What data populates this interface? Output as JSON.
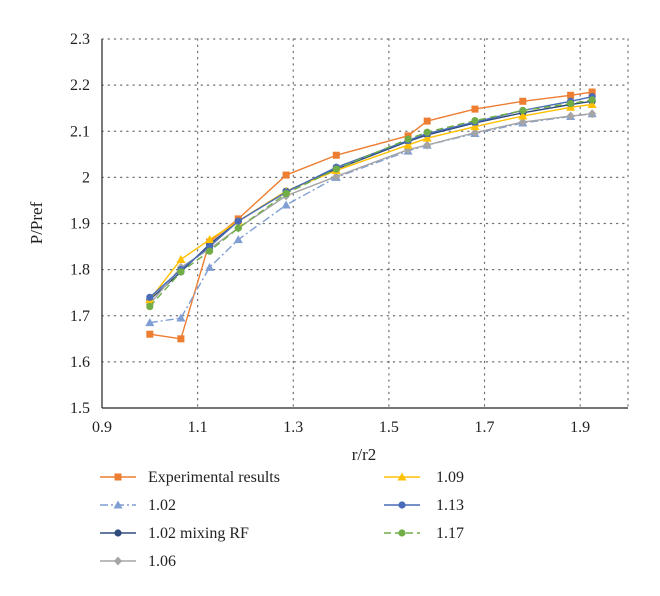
{
  "chart_data": {
    "type": "line",
    "title": "",
    "xlabel": "r/r2",
    "ylabel": "P/Pref",
    "xlim": [
      0.9,
      2.0
    ],
    "ylim": [
      1.5,
      2.3
    ],
    "x_ticks": [
      "0.9",
      "1.1",
      "1.3",
      "1.5",
      "1.7",
      "1.9"
    ],
    "x_tick_values": [
      0.9,
      1.1,
      1.3,
      1.5,
      1.7,
      1.9
    ],
    "y_ticks": [
      "1.5",
      "1.6",
      "1.7",
      "1.8",
      "1.9",
      "2",
      "2.1",
      "2.2",
      "2.3"
    ],
    "y_tick_values": [
      1.5,
      1.6,
      1.7,
      1.8,
      1.9,
      2.0,
      2.1,
      2.2,
      2.3
    ],
    "grid": "dotted",
    "legend_position": "bottom",
    "series": [
      {
        "name": "Experimental results",
        "color": "#ED7D31",
        "marker": "square",
        "dash": "solid",
        "x": [
          1.0,
          1.065,
          1.125,
          1.185,
          1.285,
          1.39,
          1.54,
          1.58,
          1.68,
          1.78,
          1.88,
          1.925
        ],
        "y": [
          1.66,
          1.65,
          1.86,
          1.91,
          2.005,
          2.048,
          2.09,
          2.122,
          2.148,
          2.165,
          2.178,
          2.185
        ]
      },
      {
        "name": "1.02",
        "color": "#7F9ED4",
        "marker": "triangle",
        "dash": "dashdot",
        "x": [
          1.0,
          1.065,
          1.125,
          1.185,
          1.285,
          1.39,
          1.54,
          1.58,
          1.68,
          1.78,
          1.88,
          1.925
        ],
        "y": [
          1.685,
          1.695,
          1.805,
          1.865,
          1.94,
          2.0,
          2.057,
          2.07,
          2.095,
          2.118,
          2.132,
          2.138
        ]
      },
      {
        "name": "1.02 mixing RF",
        "color": "#2E4B7C",
        "marker": "circle",
        "dash": "solid",
        "x": [
          1.0,
          1.065,
          1.125,
          1.185,
          1.285,
          1.39,
          1.54,
          1.58,
          1.68,
          1.78,
          1.88,
          1.925
        ],
        "y": [
          1.735,
          1.795,
          1.855,
          1.905,
          1.97,
          2.018,
          2.078,
          2.092,
          2.118,
          2.14,
          2.158,
          2.165
        ]
      },
      {
        "name": "1.06",
        "color": "#A5A5A5",
        "marker": "diamond",
        "dash": "solid",
        "x": [
          1.0,
          1.065,
          1.125,
          1.185,
          1.285,
          1.39,
          1.54,
          1.58,
          1.68,
          1.78,
          1.88,
          1.925
        ],
        "y": [
          1.725,
          1.805,
          1.845,
          1.89,
          1.96,
          2.002,
          2.06,
          2.07,
          2.097,
          2.12,
          2.133,
          2.138
        ]
      },
      {
        "name": "1.09",
        "color": "#FFC000",
        "marker": "triangle",
        "dash": "solid",
        "x": [
          1.0,
          1.065,
          1.125,
          1.185,
          1.285,
          1.39,
          1.54,
          1.58,
          1.68,
          1.78,
          1.88,
          1.925
        ],
        "y": [
          1.735,
          1.822,
          1.865,
          1.905,
          1.97,
          2.015,
          2.07,
          2.085,
          2.11,
          2.133,
          2.152,
          2.158
        ]
      },
      {
        "name": "1.13",
        "color": "#4A6CB8",
        "marker": "circle",
        "dash": "solid",
        "x": [
          1.0,
          1.065,
          1.125,
          1.185,
          1.285,
          1.39,
          1.54,
          1.58,
          1.68,
          1.78,
          1.88,
          1.925
        ],
        "y": [
          1.74,
          1.8,
          1.85,
          1.905,
          1.968,
          2.022,
          2.08,
          2.095,
          2.12,
          2.145,
          2.165,
          2.175
        ]
      },
      {
        "name": "1.17",
        "color": "#70AD47",
        "marker": "circle",
        "dash": "dashed",
        "x": [
          1.0,
          1.065,
          1.125,
          1.185,
          1.285,
          1.39,
          1.54,
          1.58,
          1.68,
          1.78,
          1.88,
          1.925
        ],
        "y": [
          1.72,
          1.795,
          1.84,
          1.89,
          1.965,
          2.018,
          2.083,
          2.098,
          2.123,
          2.145,
          2.16,
          2.168
        ]
      }
    ]
  }
}
